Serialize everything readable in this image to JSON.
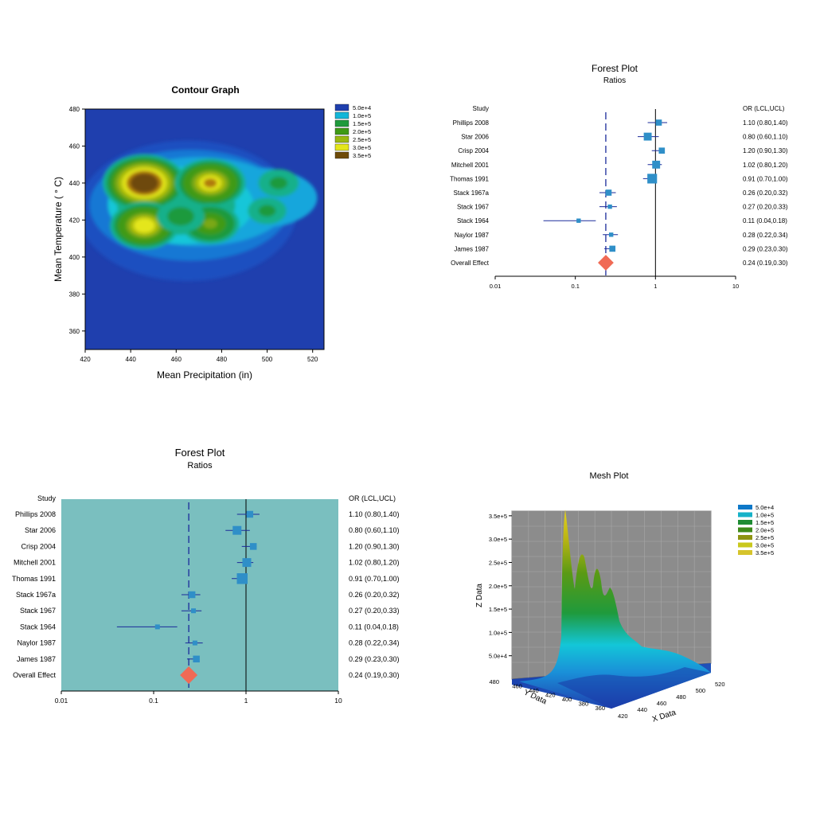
{
  "colors": {
    "level_colors": [
      "#1f3fae",
      "#13b6d8",
      "#1f9a3c",
      "#3f9a16",
      "#9ab910",
      "#e4e61a",
      "#6e4a08"
    ],
    "mesh_legend_colors": [
      "#0e78c8",
      "#16b2c8",
      "#1f8c34",
      "#3e8a1a",
      "#8e9412",
      "#c9c81e",
      "#d6c42c"
    ],
    "forest_marker": "#2f8fc8",
    "forest_diamond": "#f06a55",
    "forest_bg": "#7abfbf",
    "mesh_wall": "#8c8c8c"
  },
  "chart_data": [
    {
      "type": "heatmap",
      "title": "Contour Graph",
      "xlabel": "Mean Precipitation (in)",
      "ylabel": "Mean Temperature ( ° C)",
      "xlim": [
        420,
        525
      ],
      "ylim": [
        350,
        480
      ],
      "xticks": [
        "420",
        "440",
        "460",
        "480",
        "500",
        "520"
      ],
      "yticks": [
        "360",
        "380",
        "400",
        "420",
        "440",
        "460",
        "480"
      ],
      "legend_position": "right",
      "legend": [
        "5.0e+4",
        "1.0e+5",
        "1.5e+5",
        "2.0e+5",
        "2.5e+5",
        "3.0e+5",
        "3.5e+5"
      ],
      "peaks": [
        {
          "x": 446,
          "y": 440,
          "z": 360000
        },
        {
          "x": 446,
          "y": 417,
          "z": 280000
        },
        {
          "x": 475,
          "y": 440,
          "z": 290000
        },
        {
          "x": 475,
          "y": 418,
          "z": 220000
        },
        {
          "x": 462,
          "y": 422,
          "z": 160000
        },
        {
          "x": 505,
          "y": 440,
          "z": 120000
        },
        {
          "x": 500,
          "y": 425,
          "z": 110000
        }
      ]
    },
    {
      "type": "forest",
      "title": "Forest Plot",
      "subtitle": "Ratios",
      "col_study": "Study",
      "col_or": "OR (LCL,UCL)",
      "scale": "log",
      "xlim": [
        0.01,
        10
      ],
      "xticks": [
        "0.01",
        "0.1",
        "1",
        "10"
      ],
      "reference": 1,
      "overall_line": 0.24,
      "background": false,
      "studies": [
        {
          "name": "Phillips 2008",
          "or": 1.1,
          "lcl": 0.8,
          "ucl": 1.4,
          "text": "1.10 (0.80,1.40)",
          "weight": 2
        },
        {
          "name": "Star 2006",
          "or": 0.8,
          "lcl": 0.6,
          "ucl": 1.1,
          "text": "0.80 (0.60,1.10)",
          "weight": 3
        },
        {
          "name": "Crisp 2004",
          "or": 1.2,
          "lcl": 0.9,
          "ucl": 1.3,
          "text": "1.20 (0.90,1.30)",
          "weight": 2
        },
        {
          "name": "Mitchell 2001",
          "or": 1.02,
          "lcl": 0.8,
          "ucl": 1.2,
          "text": "1.02 (0.80,1.20)",
          "weight": 3
        },
        {
          "name": "Thomas 1991",
          "or": 0.91,
          "lcl": 0.7,
          "ucl": 1.0,
          "text": "0.91 (0.70,1.00)",
          "weight": 4
        },
        {
          "name": "Stack 1967a",
          "or": 0.26,
          "lcl": 0.2,
          "ucl": 0.32,
          "text": "0.26 (0.20,0.32)",
          "weight": 2
        },
        {
          "name": "Stack 1967",
          "or": 0.27,
          "lcl": 0.2,
          "ucl": 0.33,
          "text": "0.27 (0.20,0.33)",
          "weight": 1
        },
        {
          "name": "Stack 1964",
          "or": 0.11,
          "lcl": 0.04,
          "ucl": 0.18,
          "text": "0.11 (0.04,0.18)",
          "weight": 1
        },
        {
          "name": "Naylor 1987",
          "or": 0.28,
          "lcl": 0.22,
          "ucl": 0.34,
          "text": "0.28 (0.22,0.34)",
          "weight": 1
        },
        {
          "name": "James 1987",
          "or": 0.29,
          "lcl": 0.23,
          "ucl": 0.3,
          "text": "0.29 (0.23,0.30)",
          "weight": 2
        }
      ],
      "overall": {
        "name": "Overall Effect",
        "or": 0.24,
        "lcl": 0.19,
        "ucl": 0.3,
        "text": "0.24 (0.19,0.30)"
      }
    },
    {
      "type": "forest",
      "title": "Forest Plot",
      "subtitle": "Ratios",
      "col_study": "Study",
      "col_or": "OR (LCL,UCL)",
      "scale": "log",
      "xlim": [
        0.01,
        10
      ],
      "xticks": [
        "0.01",
        "0.1",
        "1",
        "10"
      ],
      "reference": 1,
      "overall_line": 0.24,
      "background": true,
      "studies": [
        {
          "name": "Phillips 2008",
          "or": 1.1,
          "lcl": 0.8,
          "ucl": 1.4,
          "text": "1.10 (0.80,1.40)",
          "weight": 2
        },
        {
          "name": "Star 2006",
          "or": 0.8,
          "lcl": 0.6,
          "ucl": 1.1,
          "text": "0.80 (0.60,1.10)",
          "weight": 3
        },
        {
          "name": "Crisp 2004",
          "or": 1.2,
          "lcl": 0.9,
          "ucl": 1.3,
          "text": "1.20 (0.90,1.30)",
          "weight": 2
        },
        {
          "name": "Mitchell 2001",
          "or": 1.02,
          "lcl": 0.8,
          "ucl": 1.2,
          "text": "1.02 (0.80,1.20)",
          "weight": 3
        },
        {
          "name": "Thomas 1991",
          "or": 0.91,
          "lcl": 0.7,
          "ucl": 1.0,
          "text": "0.91 (0.70,1.00)",
          "weight": 4
        },
        {
          "name": "Stack 1967a",
          "or": 0.26,
          "lcl": 0.2,
          "ucl": 0.32,
          "text": "0.26 (0.20,0.32)",
          "weight": 2
        },
        {
          "name": "Stack 1967",
          "or": 0.27,
          "lcl": 0.2,
          "ucl": 0.33,
          "text": "0.27 (0.20,0.33)",
          "weight": 1
        },
        {
          "name": "Stack 1964",
          "or": 0.11,
          "lcl": 0.04,
          "ucl": 0.18,
          "text": "0.11 (0.04,0.18)",
          "weight": 1
        },
        {
          "name": "Naylor 1987",
          "or": 0.28,
          "lcl": 0.22,
          "ucl": 0.34,
          "text": "0.28 (0.22,0.34)",
          "weight": 1
        },
        {
          "name": "James 1987",
          "or": 0.29,
          "lcl": 0.23,
          "ucl": 0.3,
          "text": "0.29 (0.23,0.30)",
          "weight": 2
        }
      ],
      "overall": {
        "name": "Overall Effect",
        "or": 0.24,
        "lcl": 0.19,
        "ucl": 0.3,
        "text": "0.24 (0.19,0.30)"
      }
    },
    {
      "type": "area",
      "title": "Mesh Plot",
      "xlabel": "X Data",
      "ylabel": "Y Data",
      "zlabel": "Z Data",
      "xticks": [
        "420",
        "440",
        "460",
        "480",
        "500",
        "520"
      ],
      "yticks": [
        "360",
        "380",
        "400",
        "420",
        "440",
        "460",
        "480"
      ],
      "zticks": [
        "5.0e+4",
        "1.0e+5",
        "1.5e+5",
        "2.0e+5",
        "2.5e+5",
        "3.0e+5",
        "3.5e+5"
      ],
      "zlim": [
        0,
        360000
      ],
      "legend_position": "top-right",
      "legend": [
        "5.0e+4",
        "1.0e+5",
        "1.5e+5",
        "2.0e+5",
        "2.5e+5",
        "3.0e+5",
        "3.5e+5"
      ]
    }
  ]
}
